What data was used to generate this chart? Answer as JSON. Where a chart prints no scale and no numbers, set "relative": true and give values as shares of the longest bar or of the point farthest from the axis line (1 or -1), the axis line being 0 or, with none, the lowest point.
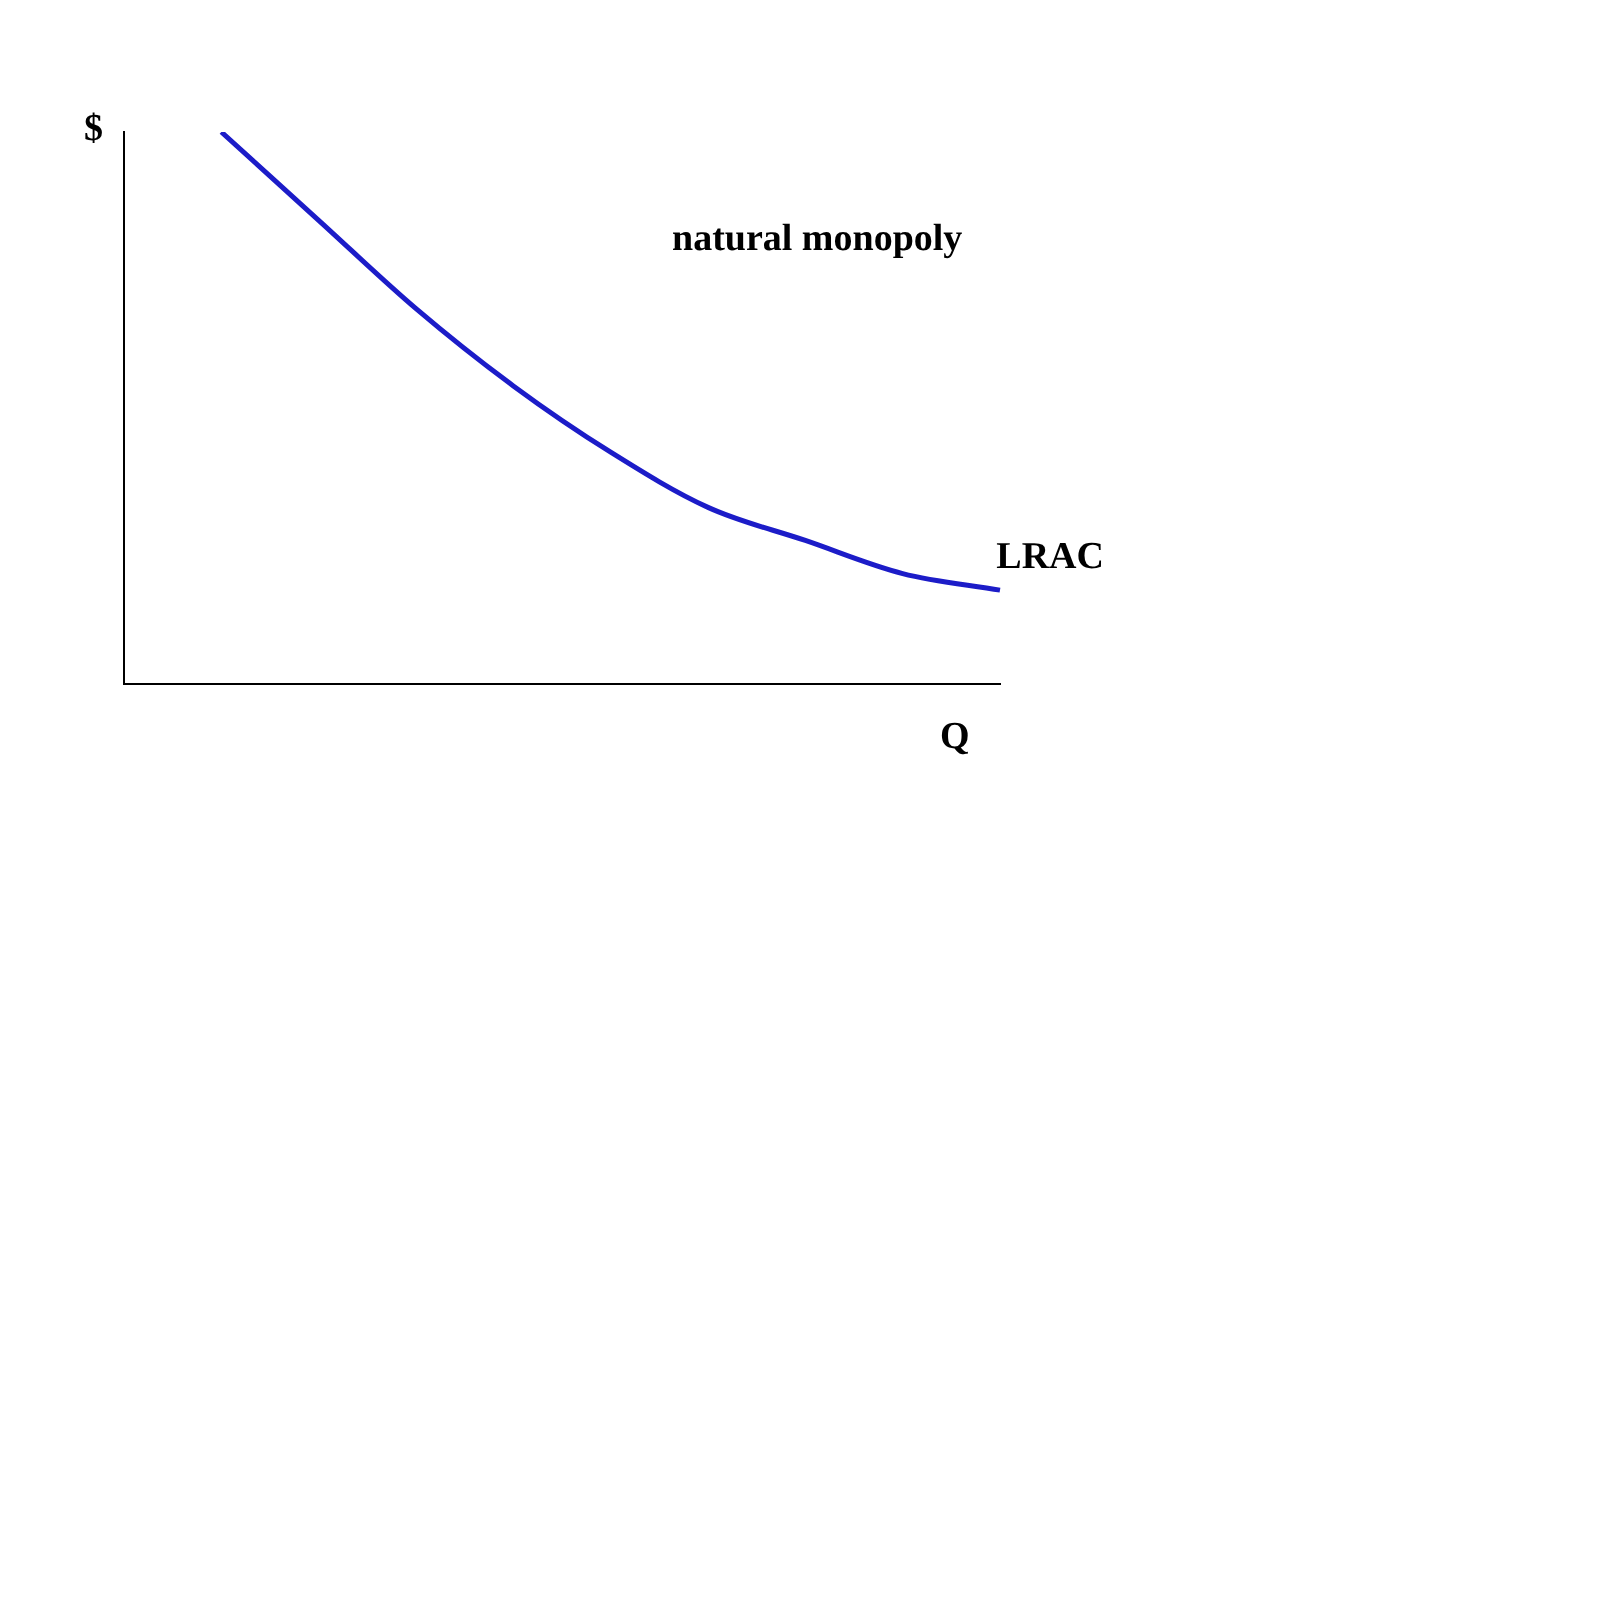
{
  "chart_data": {
    "type": "line",
    "relative": true,
    "xlabel": "Q",
    "ylabel": "$",
    "annotations": [
      "natural monopoly"
    ],
    "legend": false,
    "categories": [
      null,
      null,
      null,
      null,
      null,
      null,
      null,
      null,
      null,
      null
    ],
    "series": [
      {
        "name": "LRAC",
        "color": "#1c1cc8",
        "values": [
          null,
          1,
          0.84,
          0.68,
          0.54,
          0.42,
          0.32,
          0.26,
          0.2,
          0.17
        ]
      }
    ]
  }
}
